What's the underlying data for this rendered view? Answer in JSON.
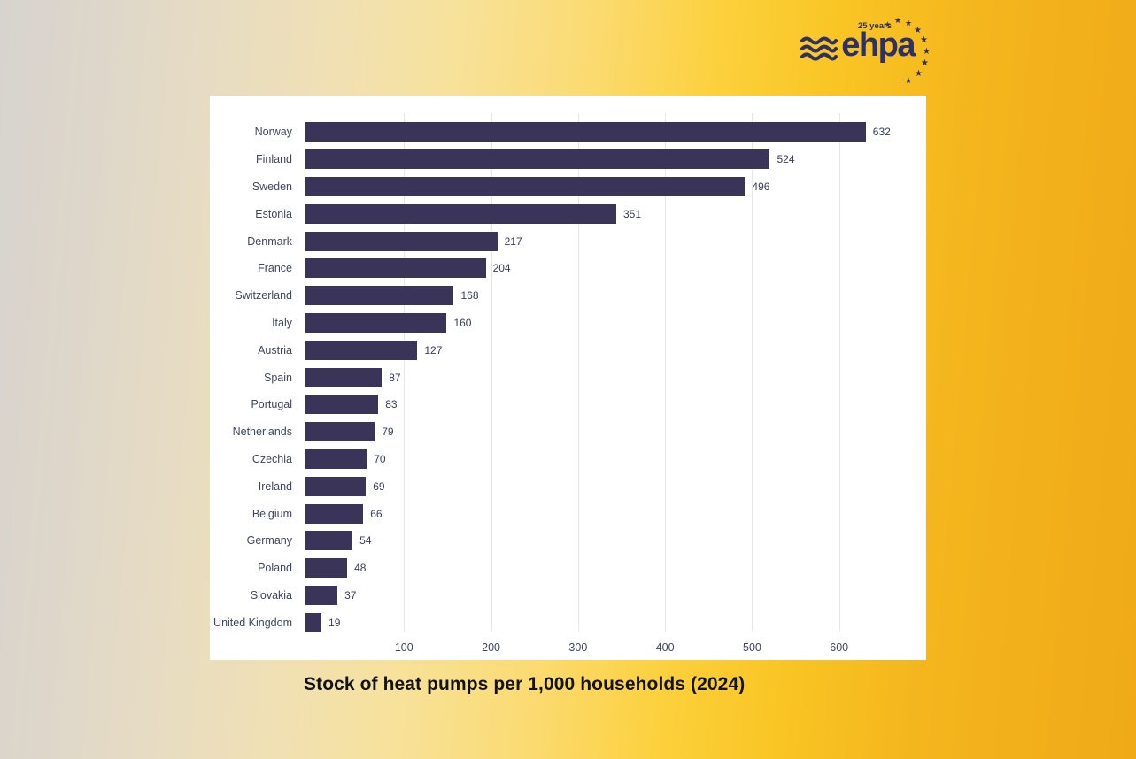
{
  "logo": {
    "brand": "ehpa",
    "anniversary": "25 years",
    "color": "#2e3166",
    "icons": [
      "waves-icon",
      "stars-icon"
    ]
  },
  "caption": "Stock of heat pumps per 1,000 households (2024)",
  "chart_data": {
    "type": "bar",
    "orientation": "horizontal",
    "title": "Stock of heat pumps per 1,000 households (2024)",
    "categories": [
      "Norway",
      "Finland",
      "Sweden",
      "Estonia",
      "Denmark",
      "France",
      "Switzerland",
      "Italy",
      "Austria",
      "Spain",
      "Portugal",
      "Netherlands",
      "Czechia",
      "Ireland",
      "Belgium",
      "Germany",
      "Poland",
      "Slovakia",
      "United Kingdom"
    ],
    "values": [
      632,
      524,
      496,
      351,
      217,
      204,
      168,
      160,
      127,
      87,
      83,
      79,
      70,
      69,
      66,
      54,
      48,
      37,
      19
    ],
    "xlabel": "",
    "ylabel": "",
    "x_ticks": [
      100,
      200,
      300,
      400,
      500,
      600
    ],
    "xlim": [
      0,
      700
    ],
    "grid": true,
    "legend": false,
    "data_labels": true,
    "bar_color": "#3a3459",
    "label_color": "#3e4662",
    "grid_color": "#e7e7e7",
    "panel_bg": "#ffffff"
  },
  "colors": {
    "background_left": "#d7d3cf",
    "background_mid": "#fbd96f",
    "background_right": "#f0aa18",
    "navy": "#2e3166"
  }
}
